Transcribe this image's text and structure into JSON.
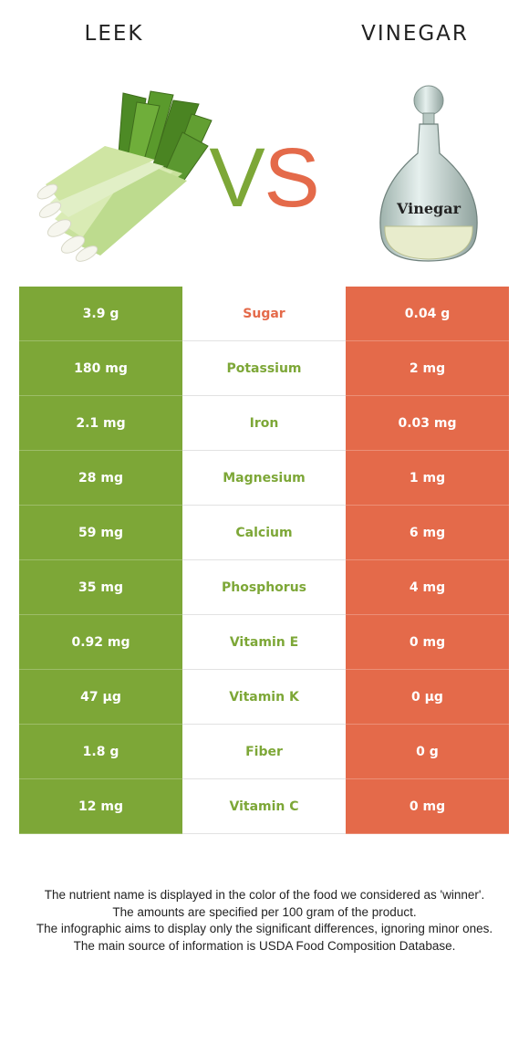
{
  "header": {
    "left_food": "LEEK",
    "right_food": "VINEGAR",
    "vs_left": "V",
    "vs_right": "S",
    "vinegar_label": "Vinegar"
  },
  "colors": {
    "leek": "#7da737",
    "vinegar": "#e46a4a"
  },
  "rows": [
    {
      "left": "3.9 g",
      "nutrient": "Sugar",
      "right": "0.04 g",
      "winner": "vinegar"
    },
    {
      "left": "180 mg",
      "nutrient": "Potassium",
      "right": "2 mg",
      "winner": "leek"
    },
    {
      "left": "2.1 mg",
      "nutrient": "Iron",
      "right": "0.03 mg",
      "winner": "leek"
    },
    {
      "left": "28 mg",
      "nutrient": "Magnesium",
      "right": "1 mg",
      "winner": "leek"
    },
    {
      "left": "59 mg",
      "nutrient": "Calcium",
      "right": "6 mg",
      "winner": "leek"
    },
    {
      "left": "35 mg",
      "nutrient": "Phosphorus",
      "right": "4 mg",
      "winner": "leek"
    },
    {
      "left": "0.92 mg",
      "nutrient": "Vitamin E",
      "right": "0 mg",
      "winner": "leek"
    },
    {
      "left": "47 µg",
      "nutrient": "Vitamin K",
      "right": "0 µg",
      "winner": "leek"
    },
    {
      "left": "1.8 g",
      "nutrient": "Fiber",
      "right": "0 g",
      "winner": "leek"
    },
    {
      "left": "12 mg",
      "nutrient": "Vitamin C",
      "right": "0 mg",
      "winner": "leek"
    }
  ],
  "footnote": [
    "The nutrient name is displayed in the color of the food we considered as 'winner'.",
    "The amounts are specified per 100 gram of the product.",
    "The infographic aims to display only the significant differences, ignoring minor ones.",
    "The main source of information is USDA Food Composition Database."
  ]
}
